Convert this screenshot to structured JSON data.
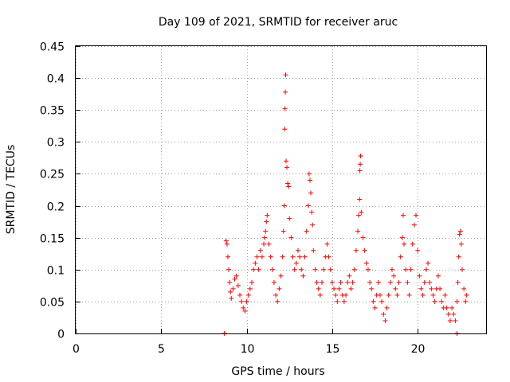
{
  "chart_data": {
    "type": "scatter",
    "title": "Day 109 of 2021, SRMTID for receiver aruc",
    "xlabel": "GPS time / hours",
    "ylabel": "SRMTID / TECUs",
    "xlim": [
      0,
      24
    ],
    "ylim": [
      0,
      0.45
    ],
    "xticks": [
      0,
      5,
      10,
      15,
      20
    ],
    "xtick_labels": [
      "0",
      "5",
      "10",
      "15",
      "20"
    ],
    "yticks": [
      0,
      0.05,
      0.1,
      0.15,
      0.2,
      0.25,
      0.3,
      0.35,
      0.4,
      0.45
    ],
    "ytick_labels": [
      "0",
      "0.05",
      "0.1",
      "0.15",
      "0.2",
      "0.25",
      "0.3",
      "0.35",
      "0.4",
      "0.45"
    ],
    "grid": true,
    "marker": "+",
    "color": "#ff0000",
    "series": [
      {
        "name": "SRMTID",
        "points": [
          [
            8.7,
            0.0
          ],
          [
            22.3,
            0.0
          ],
          [
            8.8,
            0.145
          ],
          [
            8.85,
            0.14
          ],
          [
            8.9,
            0.12
          ],
          [
            8.95,
            0.1
          ],
          [
            9.0,
            0.08
          ],
          [
            9.05,
            0.065
          ],
          [
            9.1,
            0.055
          ],
          [
            9.2,
            0.07
          ],
          [
            9.3,
            0.085
          ],
          [
            9.4,
            0.09
          ],
          [
            9.5,
            0.075
          ],
          [
            9.6,
            0.06
          ],
          [
            9.7,
            0.05
          ],
          [
            9.8,
            0.04
          ],
          [
            9.9,
            0.035
          ],
          [
            10.0,
            0.05
          ],
          [
            10.1,
            0.06
          ],
          [
            10.2,
            0.07
          ],
          [
            10.3,
            0.08
          ],
          [
            10.4,
            0.1
          ],
          [
            10.5,
            0.11
          ],
          [
            10.6,
            0.12
          ],
          [
            10.7,
            0.1
          ],
          [
            10.8,
            0.13
          ],
          [
            10.9,
            0.12
          ],
          [
            11.0,
            0.14
          ],
          [
            11.05,
            0.15
          ],
          [
            11.1,
            0.16
          ],
          [
            11.15,
            0.175
          ],
          [
            11.2,
            0.185
          ],
          [
            11.3,
            0.14
          ],
          [
            11.4,
            0.12
          ],
          [
            11.5,
            0.1
          ],
          [
            11.6,
            0.08
          ],
          [
            11.7,
            0.06
          ],
          [
            11.8,
            0.05
          ],
          [
            11.9,
            0.07
          ],
          [
            12.0,
            0.09
          ],
          [
            12.1,
            0.12
          ],
          [
            12.15,
            0.16
          ],
          [
            12.2,
            0.2
          ],
          [
            12.22,
            0.32
          ],
          [
            12.24,
            0.352
          ],
          [
            12.26,
            0.378
          ],
          [
            12.28,
            0.405
          ],
          [
            12.3,
            0.27
          ],
          [
            12.35,
            0.26
          ],
          [
            12.4,
            0.235
          ],
          [
            12.45,
            0.23
          ],
          [
            12.5,
            0.18
          ],
          [
            12.6,
            0.15
          ],
          [
            12.7,
            0.12
          ],
          [
            12.8,
            0.1
          ],
          [
            12.9,
            0.11
          ],
          [
            13.0,
            0.13
          ],
          [
            13.1,
            0.12
          ],
          [
            13.2,
            0.1
          ],
          [
            13.3,
            0.09
          ],
          [
            13.4,
            0.12
          ],
          [
            13.5,
            0.16
          ],
          [
            13.6,
            0.2
          ],
          [
            13.65,
            0.25
          ],
          [
            13.7,
            0.24
          ],
          [
            13.75,
            0.22
          ],
          [
            13.8,
            0.19
          ],
          [
            13.85,
            0.17
          ],
          [
            13.9,
            0.13
          ],
          [
            14.0,
            0.1
          ],
          [
            14.1,
            0.08
          ],
          [
            14.2,
            0.07
          ],
          [
            14.3,
            0.06
          ],
          [
            14.4,
            0.08
          ],
          [
            14.5,
            0.1
          ],
          [
            14.6,
            0.12
          ],
          [
            14.7,
            0.14
          ],
          [
            14.8,
            0.12
          ],
          [
            14.9,
            0.1
          ],
          [
            15.0,
            0.08
          ],
          [
            15.1,
            0.07
          ],
          [
            15.2,
            0.06
          ],
          [
            15.3,
            0.05
          ],
          [
            15.4,
            0.07
          ],
          [
            15.5,
            0.08
          ],
          [
            15.6,
            0.06
          ],
          [
            15.7,
            0.05
          ],
          [
            15.8,
            0.06
          ],
          [
            15.9,
            0.08
          ],
          [
            16.0,
            0.09
          ],
          [
            16.1,
            0.07
          ],
          [
            16.2,
            0.08
          ],
          [
            16.3,
            0.1
          ],
          [
            16.4,
            0.13
          ],
          [
            16.5,
            0.16
          ],
          [
            16.55,
            0.185
          ],
          [
            16.6,
            0.21
          ],
          [
            16.62,
            0.255
          ],
          [
            16.64,
            0.265
          ],
          [
            16.66,
            0.278
          ],
          [
            16.7,
            0.19
          ],
          [
            16.8,
            0.15
          ],
          [
            16.9,
            0.13
          ],
          [
            17.0,
            0.11
          ],
          [
            17.1,
            0.1
          ],
          [
            17.2,
            0.08
          ],
          [
            17.3,
            0.07
          ],
          [
            17.4,
            0.05
          ],
          [
            17.5,
            0.04
          ],
          [
            17.6,
            0.06
          ],
          [
            17.7,
            0.08
          ],
          [
            17.8,
            0.06
          ],
          [
            17.9,
            0.05
          ],
          [
            18.0,
            0.03
          ],
          [
            18.1,
            0.02
          ],
          [
            18.2,
            0.04
          ],
          [
            18.3,
            0.06
          ],
          [
            18.4,
            0.08
          ],
          [
            18.5,
            0.1
          ],
          [
            18.6,
            0.09
          ],
          [
            18.7,
            0.07
          ],
          [
            18.8,
            0.06
          ],
          [
            18.9,
            0.08
          ],
          [
            19.0,
            0.12
          ],
          [
            19.1,
            0.15
          ],
          [
            19.15,
            0.185
          ],
          [
            19.2,
            0.14
          ],
          [
            19.3,
            0.1
          ],
          [
            19.4,
            0.08
          ],
          [
            19.5,
            0.06
          ],
          [
            19.6,
            0.1
          ],
          [
            19.7,
            0.14
          ],
          [
            19.8,
            0.17
          ],
          [
            19.9,
            0.185
          ],
          [
            20.0,
            0.13
          ],
          [
            20.1,
            0.09
          ],
          [
            20.2,
            0.07
          ],
          [
            20.3,
            0.06
          ],
          [
            20.4,
            0.08
          ],
          [
            20.5,
            0.1
          ],
          [
            20.6,
            0.11
          ],
          [
            20.7,
            0.08
          ],
          [
            20.8,
            0.07
          ],
          [
            20.9,
            0.06
          ],
          [
            21.0,
            0.05
          ],
          [
            21.1,
            0.07
          ],
          [
            21.2,
            0.09
          ],
          [
            21.3,
            0.07
          ],
          [
            21.4,
            0.05
          ],
          [
            21.5,
            0.04
          ],
          [
            21.6,
            0.06
          ],
          [
            21.7,
            0.04
          ],
          [
            21.8,
            0.03
          ],
          [
            21.9,
            0.02
          ],
          [
            22.0,
            0.04
          ],
          [
            22.1,
            0.03
          ],
          [
            22.2,
            0.02
          ],
          [
            22.3,
            0.05
          ],
          [
            22.35,
            0.08
          ],
          [
            22.4,
            0.12
          ],
          [
            22.45,
            0.155
          ],
          [
            22.5,
            0.16
          ],
          [
            22.55,
            0.14
          ],
          [
            22.6,
            0.1
          ],
          [
            22.7,
            0.07
          ],
          [
            22.8,
            0.05
          ],
          [
            22.85,
            0.06
          ]
        ]
      }
    ]
  }
}
